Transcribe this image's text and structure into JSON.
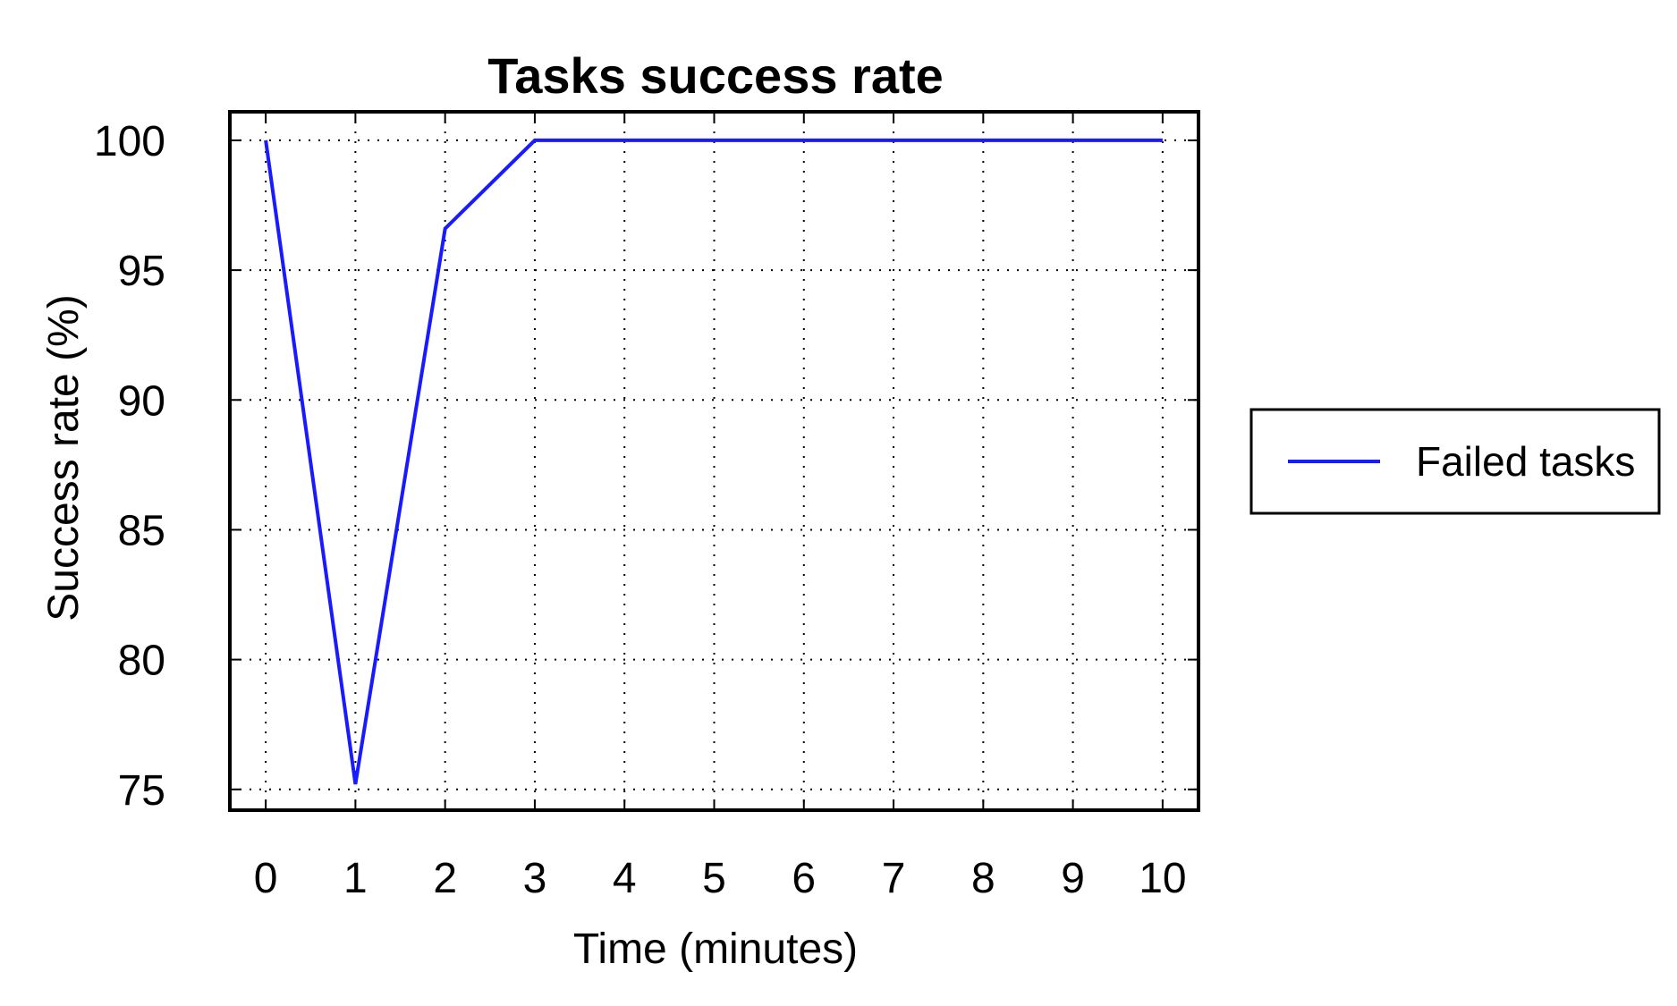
{
  "chart_data": {
    "type": "line",
    "title": "Tasks success rate",
    "xlabel": "Time (minutes)",
    "ylabel": "Success rate (%)",
    "x": [
      0,
      1,
      2,
      3,
      4,
      5,
      6,
      7,
      8,
      9,
      10
    ],
    "x_ticks": [
      "0",
      "1",
      "2",
      "3",
      "4",
      "5",
      "6",
      "7",
      "8",
      "9",
      "10"
    ],
    "y_ticks": [
      "75",
      "80",
      "85",
      "90",
      "95",
      "100"
    ],
    "xlim": [
      -0.4,
      10.4
    ],
    "ylim": [
      74.2,
      101.1
    ],
    "grid": true,
    "legend_position": "outside-right",
    "series": [
      {
        "name": "Failed tasks",
        "color": "#1a1aff",
        "values": [
          100,
          75.2,
          96.6,
          100,
          100,
          100,
          100,
          100,
          100,
          100,
          100
        ]
      }
    ]
  }
}
